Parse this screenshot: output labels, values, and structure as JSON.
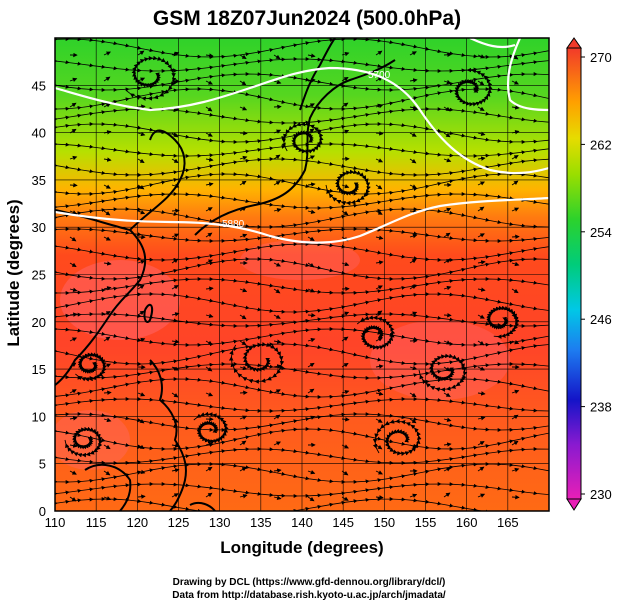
{
  "title": "GSM 18Z07Jun2024 (500.0hPa)",
  "xlabel": "Longitude (degrees)",
  "ylabel": "Latitude  (degrees)",
  "credits": [
    "Drawing by DCL (https://www.gfd-dennou.org/library/dcl/)",
    "Data from http://database.rish.kyoto-u.ac.jp/arch/jmadata/"
  ],
  "contour_labels": [
    "5700",
    "5880"
  ],
  "colors": {
    "cold_north": "#44cc22",
    "mid": "#ccdd00",
    "warm": "#ff6600",
    "hot": "#ee3322",
    "contour": "#ffffff",
    "streamline": "#000000"
  },
  "map_data": {
    "type": "streamline-temperature-map",
    "lon_range": [
      110,
      170
    ],
    "lat_range": [
      0,
      50
    ],
    "x_ticks": [
      "110",
      "115",
      "120",
      "125",
      "130",
      "135",
      "140",
      "145",
      "150",
      "155",
      "160",
      "165"
    ],
    "y_ticks": [
      "0",
      "5",
      "10",
      "15",
      "20",
      "25",
      "30",
      "35",
      "40",
      "45"
    ],
    "grid": true,
    "colorbar": {
      "ticks": [
        "230",
        "238",
        "246",
        "254",
        "262",
        "270"
      ],
      "min": 230,
      "max": 270,
      "colors": [
        "#cc00aa",
        "#0000cc",
        "#00aaff",
        "#00cc66",
        "#66dd00",
        "#dddd00",
        "#ff9900",
        "#ee2200"
      ]
    }
  }
}
